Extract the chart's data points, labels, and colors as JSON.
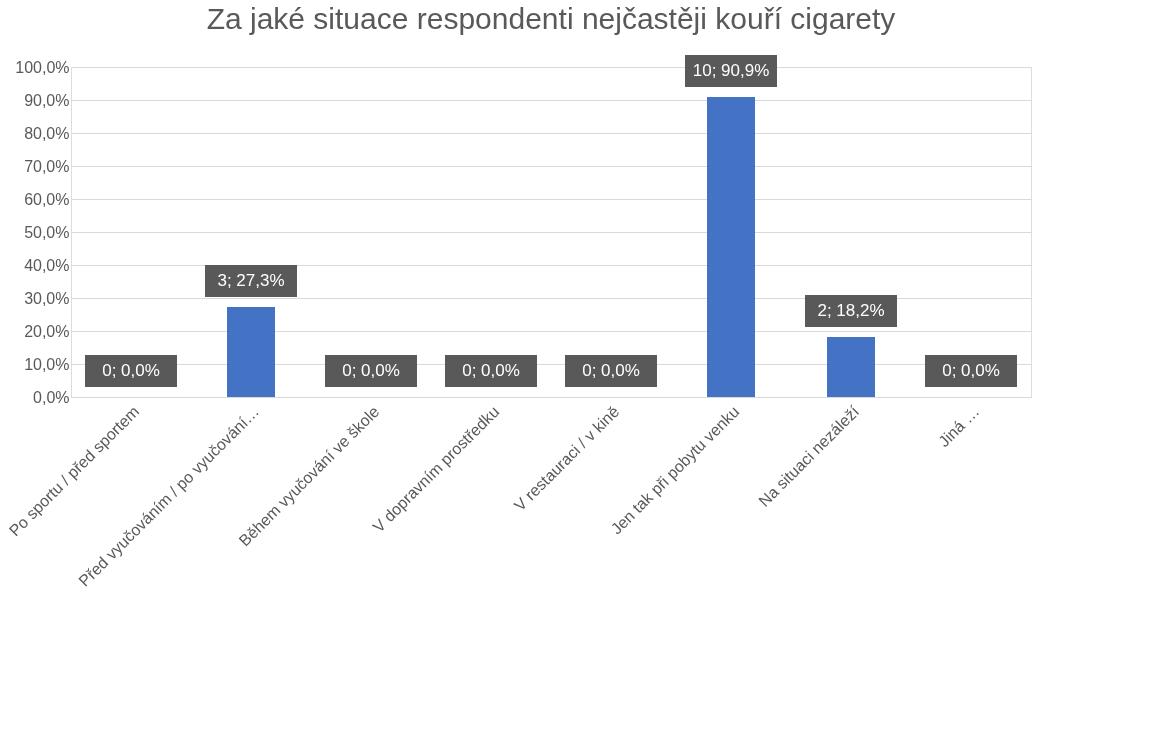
{
  "chart_data": {
    "type": "bar",
    "title": "Za jaké situace respondenti nejčastěji kouří cigarety",
    "categories": [
      "Po sportu / před sportem",
      "Před vyučováním / po vyučování…",
      "Během vyučování ve škole",
      "V dopravním prostředku",
      "V restauraci / v kině",
      "Jen tak při pobytu venku",
      "Na situaci nezáleží",
      "Jiná …"
    ],
    "values": [
      0,
      27.3,
      0,
      0,
      0,
      90.9,
      18.2,
      0
    ],
    "value_labels": [
      "0; 0,0%",
      "3; 27,3%",
      "0; 0,0%",
      "0; 0,0%",
      "0; 0,0%",
      "10; 90,9%",
      "2; 18,2%",
      "0; 0,0%"
    ],
    "color": "#4472c4",
    "ylim": [
      0,
      100
    ],
    "yticks": [
      {
        "value": 0,
        "label": "0,0%"
      },
      {
        "value": 10,
        "label": "10,0%"
      },
      {
        "value": 20,
        "label": "20,0%"
      },
      {
        "value": 30,
        "label": "30,0%"
      },
      {
        "value": 40,
        "label": "40,0%"
      },
      {
        "value": 50,
        "label": "50,0%"
      },
      {
        "value": 60,
        "label": "60,0%"
      },
      {
        "value": 70,
        "label": "70,0%"
      },
      {
        "value": 80,
        "label": "80,0%"
      },
      {
        "value": 90,
        "label": "90,0%"
      },
      {
        "value": 100,
        "label": "100,0%"
      }
    ],
    "grid": "y"
  }
}
